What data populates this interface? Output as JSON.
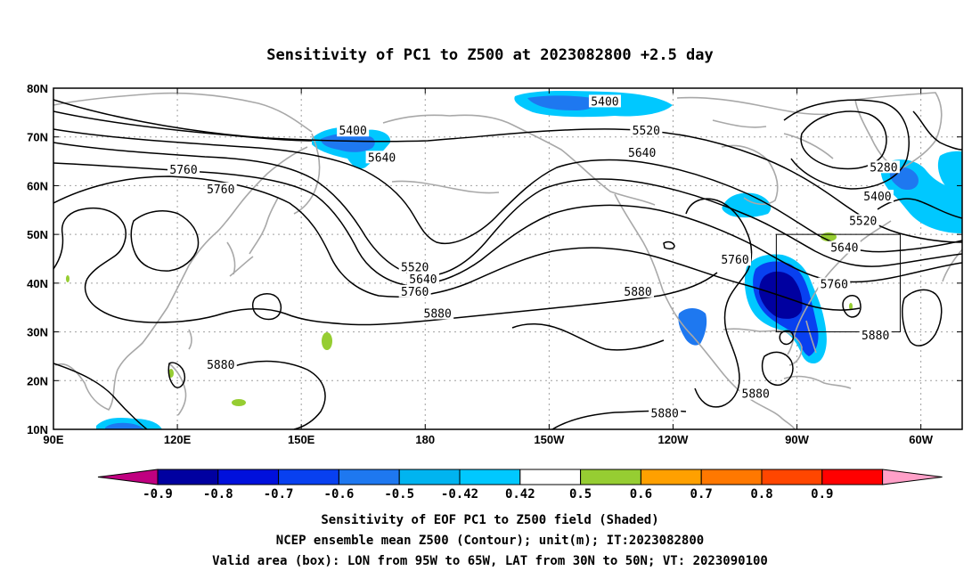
{
  "title": "Sensitivity of PC1 to Z500 at 2023082800 +2.5 day",
  "map": {
    "lon_range": [
      90,
      310
    ],
    "lat_range": [
      10,
      80
    ],
    "lon_ticks": [
      {
        "lon": 90,
        "label": "90E"
      },
      {
        "lon": 120,
        "label": "120E"
      },
      {
        "lon": 150,
        "label": "150E"
      },
      {
        "lon": 180,
        "label": "180"
      },
      {
        "lon": 210,
        "label": "150W"
      },
      {
        "lon": 240,
        "label": "120W"
      },
      {
        "lon": 270,
        "label": "90W"
      },
      {
        "lon": 300,
        "label": "60W"
      }
    ],
    "lat_ticks": [
      {
        "lat": 80,
        "label": "80N"
      },
      {
        "lat": 70,
        "label": "70N"
      },
      {
        "lat": 60,
        "label": "60N"
      },
      {
        "lat": 50,
        "label": "50N"
      },
      {
        "lat": 40,
        "label": "40N"
      },
      {
        "lat": 30,
        "label": "30N"
      },
      {
        "lat": 20,
        "label": "20N"
      },
      {
        "lat": 10,
        "label": "10N"
      }
    ],
    "valid_box": {
      "lon_min": 265,
      "lon_max": 295,
      "lat_min": 30,
      "lat_max": 50
    },
    "contour_labels": [
      {
        "text": "5400",
        "lon": 162.5,
        "lat": 71.0
      },
      {
        "text": "5640",
        "lon": 169.5,
        "lat": 65.5
      },
      {
        "text": "5760",
        "lon": 121.5,
        "lat": 63.0
      },
      {
        "text": "5760",
        "lon": 130.5,
        "lat": 59.0
      },
      {
        "text": "5520",
        "lon": 177.5,
        "lat": 43.0
      },
      {
        "text": "5640",
        "lon": 179.5,
        "lat": 40.5
      },
      {
        "text": "5760",
        "lon": 177.5,
        "lat": 38.0
      },
      {
        "text": "5880",
        "lon": 183.0,
        "lat": 33.5
      },
      {
        "text": "5880",
        "lon": 130.5,
        "lat": 23.0
      },
      {
        "text": "5400",
        "lon": 223.5,
        "lat": 77.0
      },
      {
        "text": "5520",
        "lon": 233.5,
        "lat": 71.0
      },
      {
        "text": "5640",
        "lon": 232.5,
        "lat": 66.5
      },
      {
        "text": "5760",
        "lon": 255.0,
        "lat": 44.5
      },
      {
        "text": "5880",
        "lon": 231.5,
        "lat": 38.0
      },
      {
        "text": "5880",
        "lon": 238.0,
        "lat": 13.0
      },
      {
        "text": "5880",
        "lon": 260.0,
        "lat": 17.0
      },
      {
        "text": "5280",
        "lon": 291.0,
        "lat": 63.5
      },
      {
        "text": "5400",
        "lon": 289.5,
        "lat": 57.5
      },
      {
        "text": "5520",
        "lon": 286.0,
        "lat": 52.5
      },
      {
        "text": "5640",
        "lon": 281.5,
        "lat": 47.0
      },
      {
        "text": "5760",
        "lon": 279.0,
        "lat": 39.5
      },
      {
        "text": "5880",
        "lon": 289.0,
        "lat": 29.0
      }
    ]
  },
  "colorbar": {
    "labels": [
      "-0.9",
      "-0.8",
      "-0.7",
      "-0.6",
      "-0.5",
      "-0.42",
      "0.42",
      "0.5",
      "0.6",
      "0.7",
      "0.8",
      "0.9"
    ],
    "colors": [
      "#c00080",
      "#0000a0",
      "#0010dc",
      "#0840f0",
      "#1e78f0",
      "#00b4f0",
      "#00c8ff",
      "#ffffff",
      "#96cd32",
      "#ffa000",
      "#ff7800",
      "#ff4600",
      "#ff0000",
      "#ffa0c8"
    ]
  },
  "captions": [
    "Sensitivity of EOF PC1 to Z500 field (Shaded)",
    "NCEP ensemble mean Z500 (Contour); unit(m); IT:2023082800",
    "Valid area (box): LON from 95W to 65W, LAT from 30N to 50N; VT: 2023090100"
  ]
}
